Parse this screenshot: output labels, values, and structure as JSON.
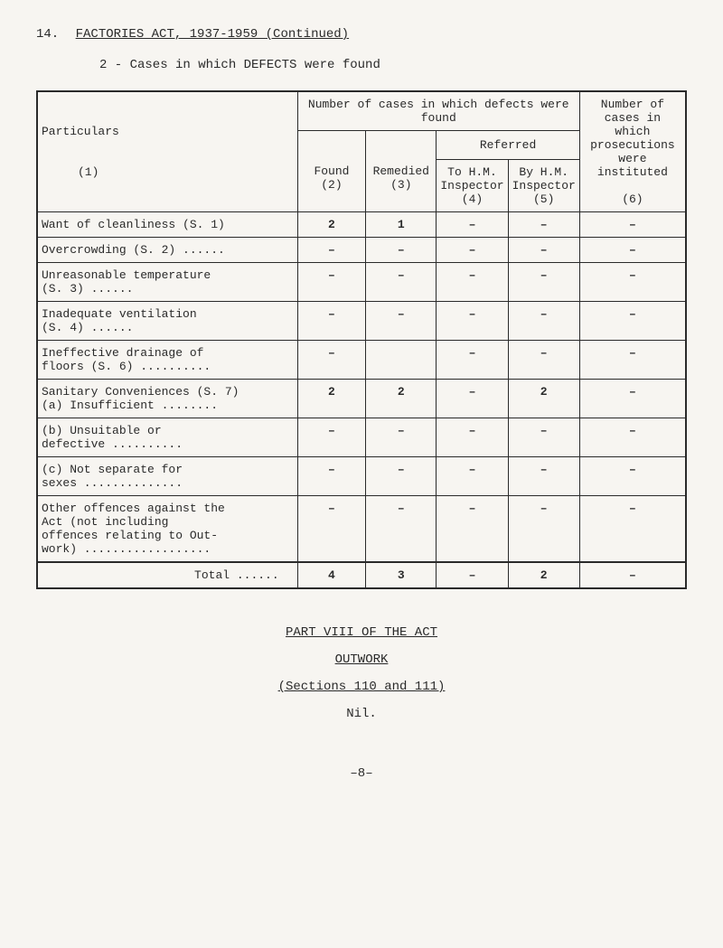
{
  "header": {
    "number": "14.",
    "title": "FACTORIES ACT, 1937-1959 (Continued)"
  },
  "subtitle": "2 - Cases in which DEFECTS were found",
  "table": {
    "header_main": "Number of cases in which defects were found",
    "header_right": "Number of cases in which prosecutions were instituted",
    "header_referred": "Referred",
    "col_particulars": "Particulars",
    "col_1": "(1)",
    "col_found": "Found",
    "col_2": "(2)",
    "col_remedied": "Remedied",
    "col_3": "(3)",
    "col_to_hm": "To H.M.",
    "col_inspector4": "Inspector",
    "col_4": "(4)",
    "col_by_hm": "By H.M.",
    "col_inspector5": "Inspector",
    "col_5": "(5)",
    "col_6": "(6)",
    "rows": [
      {
        "label": "Want of cleanliness (S. 1)",
        "c2": "2",
        "c3": "1",
        "c4": "–",
        "c5": "–",
        "c6": "–"
      },
      {
        "label": "Overcrowding (S. 2) ......",
        "c2": "–",
        "c3": "–",
        "c4": "–",
        "c5": "–",
        "c6": "–"
      },
      {
        "label": "Unreasonable temperature\n            (S. 3) ......",
        "c2": "–",
        "c3": "–",
        "c4": "–",
        "c5": "–",
        "c6": "–"
      },
      {
        "label": "Inadequate ventilation\n            (S. 4) ......",
        "c2": "–",
        "c3": "–",
        "c4": "–",
        "c5": "–",
        "c6": "–"
      },
      {
        "label": "Ineffective drainage of\nfloors (S. 6) ..........",
        "c2": "–",
        "c3": "",
        "c4": "–",
        "c5": "–",
        "c6": "–"
      },
      {
        "label": "Sanitary Conveniences (S. 7)\n(a) Insufficient ........",
        "c2": "2",
        "c3": "2",
        "c4": "–",
        "c5": "2",
        "c6": "–"
      },
      {
        "label": "(b) Unsuitable or\n    defective ..........",
        "c2": "–",
        "c3": "–",
        "c4": "–",
        "c5": "–",
        "c6": "–"
      },
      {
        "label": "(c) Not separate for\n    sexes ..............",
        "c2": "–",
        "c3": "–",
        "c4": "–",
        "c5": "–",
        "c6": "–"
      },
      {
        "label": "Other offences against the\nAct (not including\noffences relating to Out-\nwork) ..................",
        "c2": "–",
        "c3": "–",
        "c4": "–",
        "c5": "–",
        "c6": "–"
      }
    ],
    "total": {
      "label": "Total ......",
      "c2": "4",
      "c3": "3",
      "c4": "–",
      "c5": "2",
      "c6": "–"
    }
  },
  "part_section": {
    "title": "PART VIII OF THE ACT",
    "outwork": "OUTWORK",
    "sections": "(Sections 110 and 111)",
    "nil": "Nil."
  },
  "page_number": "–8–"
}
